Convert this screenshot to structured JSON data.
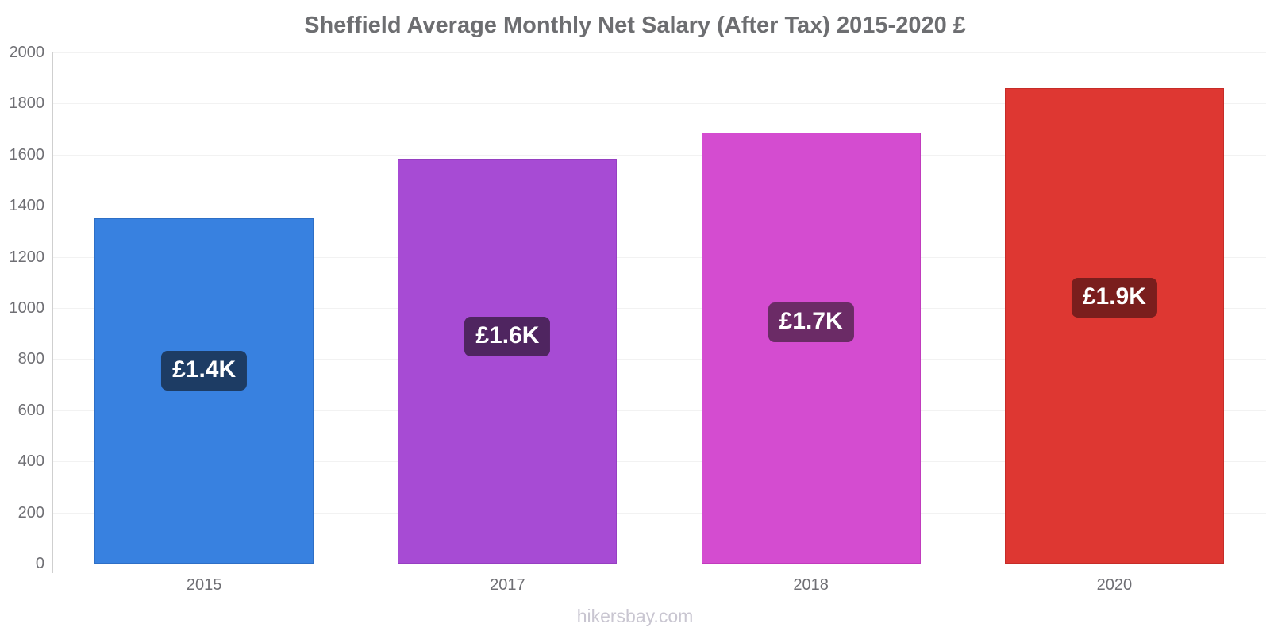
{
  "page": {
    "footer": "hikersbay.com"
  },
  "chart_data": {
    "type": "bar",
    "title": "Sheffield Average Monthly Net Salary (After Tax) 2015-2020 £",
    "categories": [
      "2015",
      "2017",
      "2018",
      "2020"
    ],
    "values": [
      1350,
      1585,
      1685,
      1860
    ],
    "value_labels": [
      "£1.4K",
      "£1.6K",
      "£1.7K",
      "£1.9K"
    ],
    "bar_colors": [
      "#3881E0",
      "#A74BD4",
      "#D44CD0",
      "#DE3732"
    ],
    "bar_border_colors": [
      "#2E6FC6",
      "#963FC2",
      "#C13BBD",
      "#C62C28"
    ],
    "label_badge_colors": [
      "#1D3C64",
      "#4F2560",
      "#6B2B66",
      "#7A1E1D"
    ],
    "xlabel": "",
    "ylabel": "",
    "ylim": [
      0,
      2000
    ],
    "ytick_step": 200,
    "grid": "horizontal",
    "legend": "none",
    "currency": "£"
  },
  "colors": {
    "background": "#FFFFFF",
    "title_text": "#6D6E71",
    "axis_text": "#6F6F74",
    "grid_line": "#F2F2F2",
    "axis_line": "#CFCFCF",
    "baseline": "#C9C9C9",
    "badge_text": "#FFFFFF",
    "footer_text": "#C9C6D1"
  }
}
